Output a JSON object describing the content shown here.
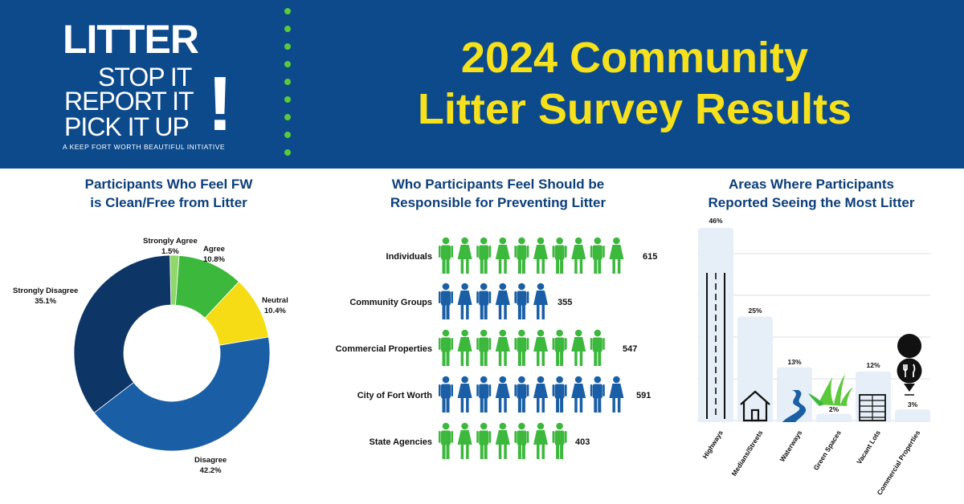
{
  "header": {
    "logo": {
      "line1": "LITTER",
      "line2": "STOP IT",
      "line3": "REPORT IT",
      "line4": "PICK IT UP",
      "exclaim": "!",
      "tagline": "A KEEP FORT WORTH BEAUTIFUL INITIATIVE"
    },
    "title_line1": "2024 Community",
    "title_line2": "Litter Survey Results"
  },
  "colors": {
    "header_bg": "#0c4a8c",
    "title": "#f6e11c",
    "green": "#3cb83c",
    "blue": "#1a5fa6",
    "navy": "#0d3566",
    "yellow": "#f6dc14",
    "light_green": "#8fd86a",
    "bar_fill": "#e6eef7"
  },
  "chart_data": [
    {
      "type": "pie",
      "title": "Participants Who Feel FW is Clean/Free from Litter",
      "title_line1": "Participants Who Feel FW",
      "title_line2": "is Clean/Free from Litter",
      "series": [
        {
          "name": "Strongly Agree",
          "value": 1.5,
          "label": "1.5%",
          "color": "#8fd86a"
        },
        {
          "name": "Agree",
          "value": 10.8,
          "label": "10.8%",
          "color": "#3cb83c"
        },
        {
          "name": "Neutral",
          "value": 10.4,
          "label": "10.4%",
          "color": "#f6dc14"
        },
        {
          "name": "Disagree",
          "value": 42.2,
          "label": "42.2%",
          "color": "#1a5fa6"
        },
        {
          "name": "Strongly Disagree",
          "value": 35.1,
          "label": "35.1%",
          "color": "#0d3566"
        }
      ]
    },
    {
      "type": "bar",
      "title": "Who Participants Feel Should be Responsible for Preventing Litter",
      "title_line1": "Who Participants Feel Should be",
      "title_line2": "Responsible for Preventing Litter",
      "categories": [
        "Individuals",
        "Community Groups",
        "Commercial Properties",
        "City of Fort Worth",
        "State Agencies"
      ],
      "values": [
        615,
        355,
        547,
        591,
        403
      ],
      "figure_counts": [
        10,
        6,
        9,
        10,
        7
      ],
      "colors": [
        "green",
        "blue",
        "green",
        "blue",
        "green"
      ]
    },
    {
      "type": "bar",
      "title": "Areas Where Participants Reported Seeing the Most Litter",
      "title_line1": "Areas Where Participants",
      "title_line2": "Reported Seeing the Most Litter",
      "categories": [
        "Highways",
        "Medians/Streets",
        "Waterways",
        "Green Spaces",
        "Vacant Lots",
        "Commercial Properties"
      ],
      "values": [
        46,
        25,
        13,
        2,
        12,
        3
      ],
      "value_labels": [
        "46%",
        "25%",
        "13%",
        "2%",
        "12%",
        "3%"
      ],
      "icons": [
        "highway-icon",
        "house-icon",
        "river-icon",
        "grass-icon",
        "building-icon",
        "restaurant-pin-icon"
      ]
    }
  ]
}
